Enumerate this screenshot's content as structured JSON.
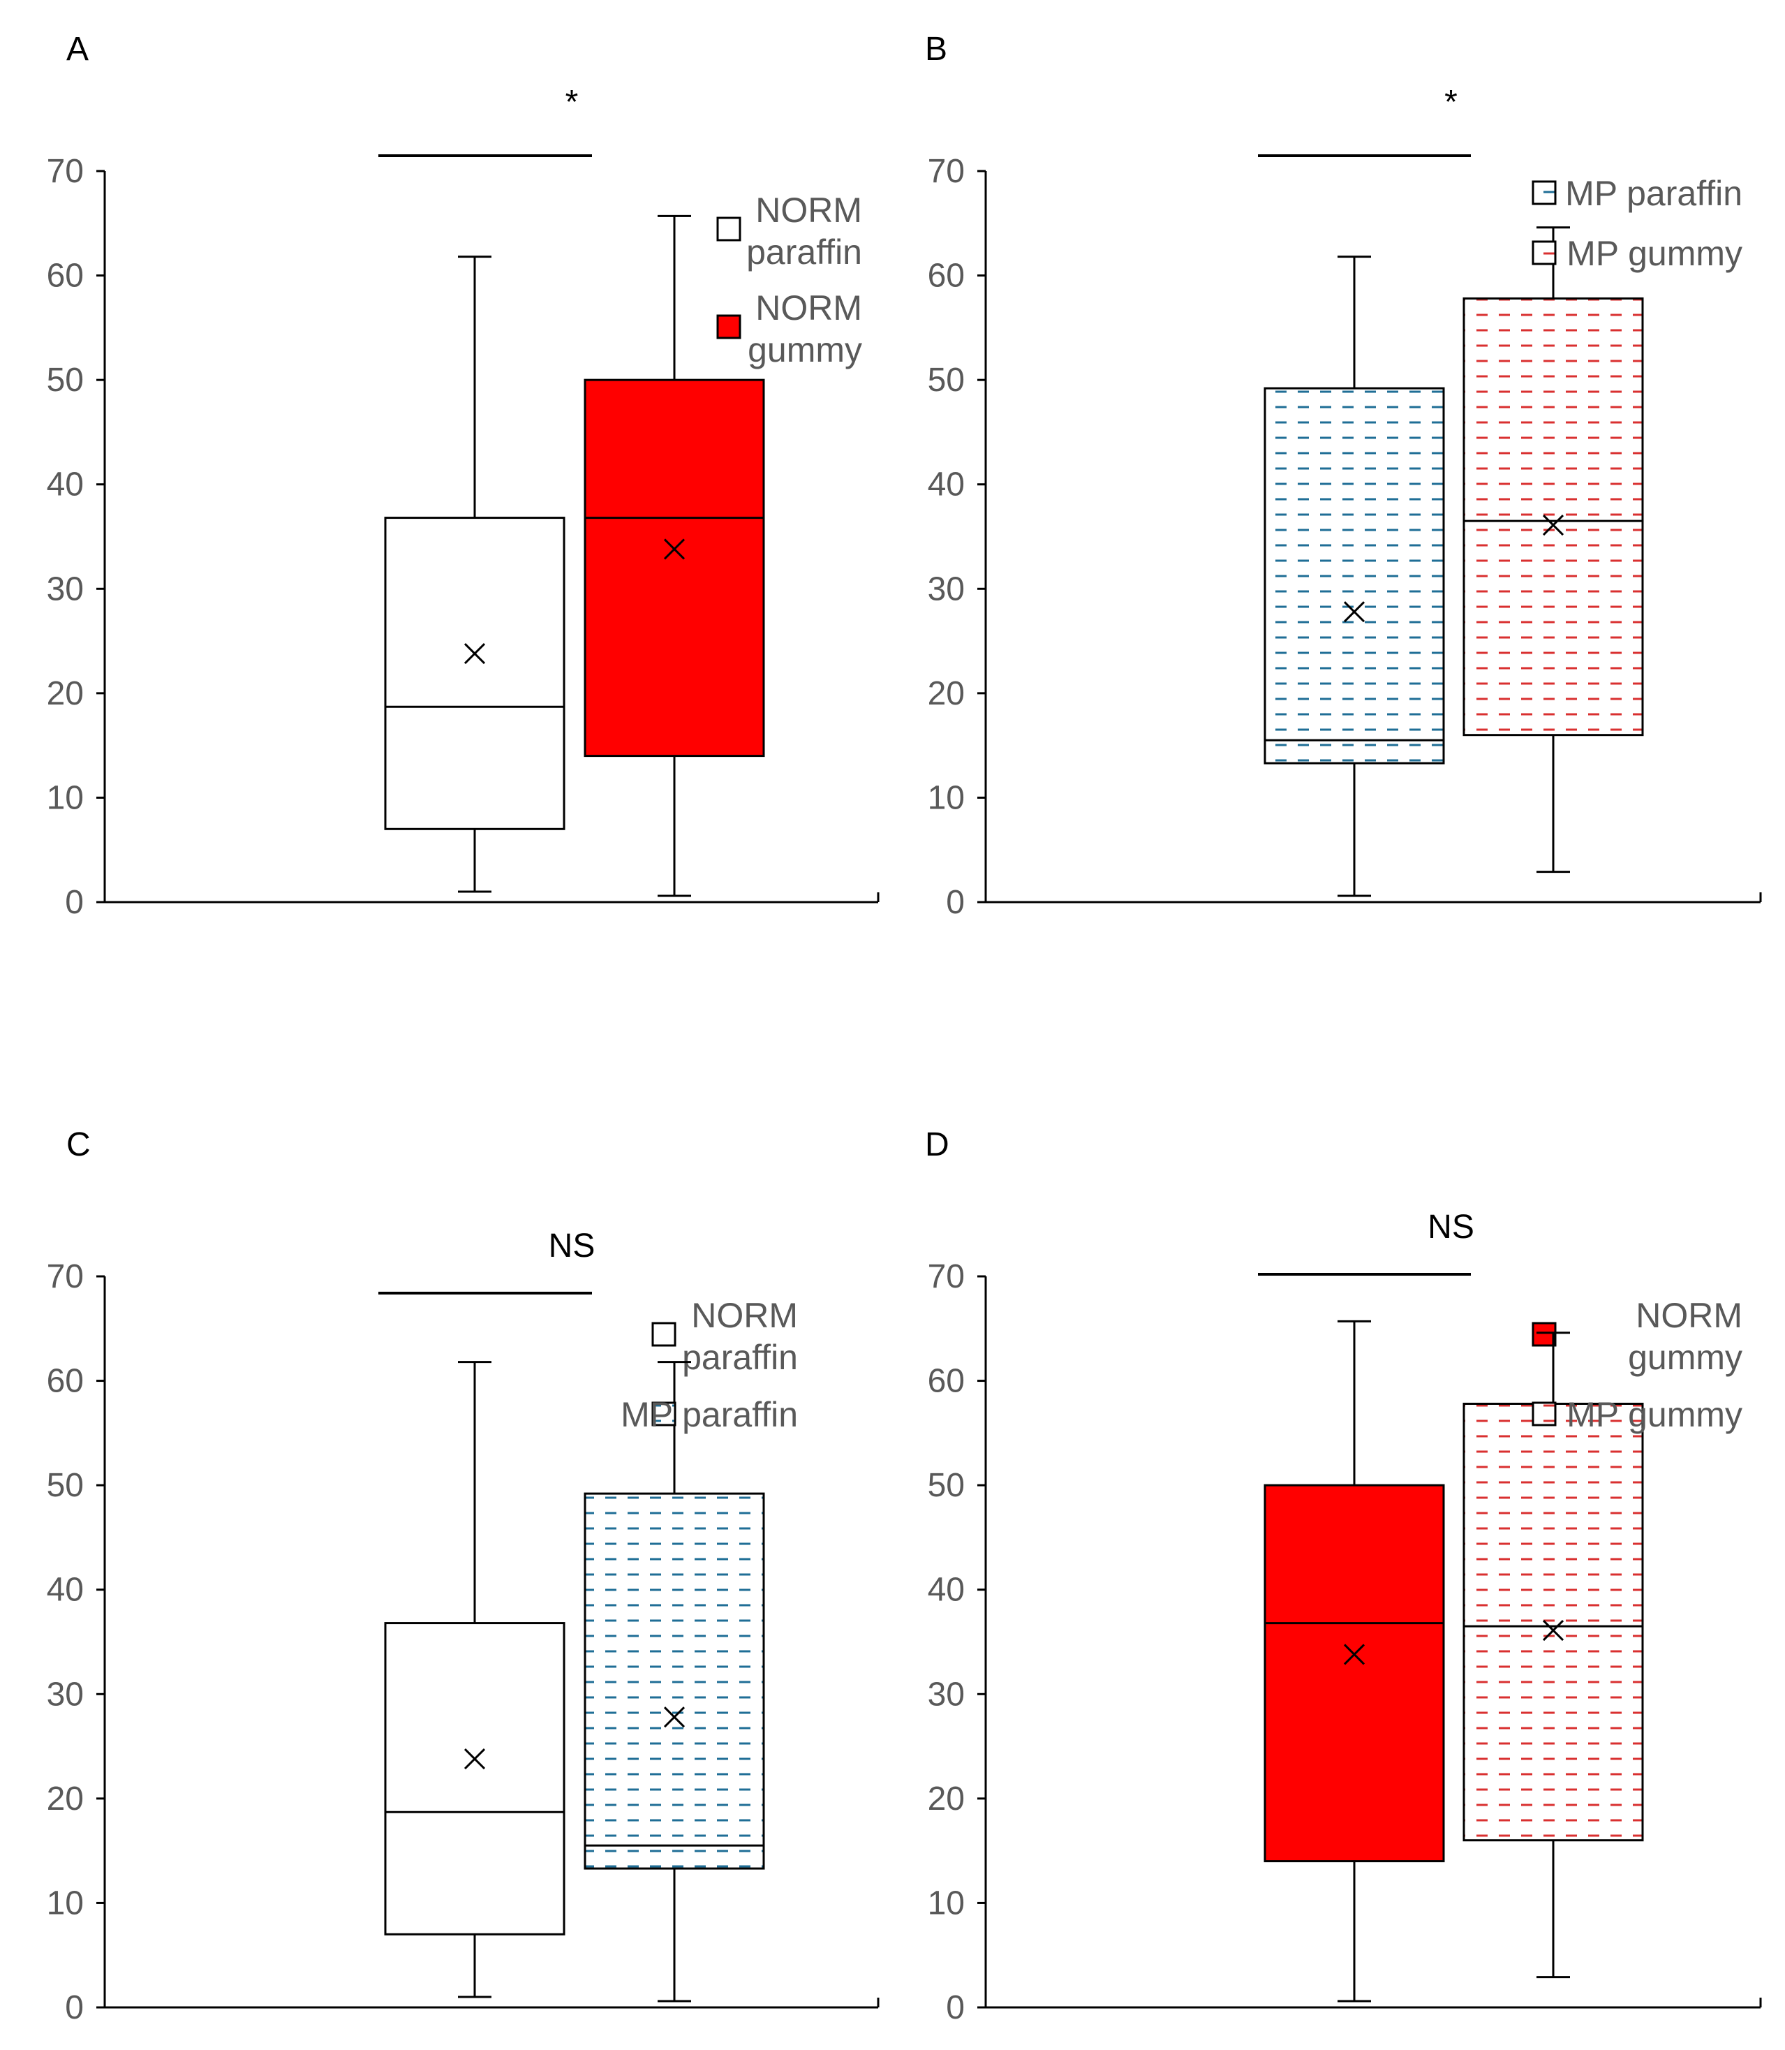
{
  "colors": {
    "red": "#ff0000",
    "white": "#ffffff",
    "blue_dash": "#1f6e96",
    "red_dash": "#d93030",
    "axis": "#000000",
    "tick_text": "#595959"
  },
  "chart_data": [
    {
      "type": "box",
      "panel": "A",
      "significance": "*",
      "ylim": [
        0,
        70
      ],
      "yticks": [
        "0",
        "10",
        "20",
        "30",
        "40",
        "50",
        "60",
        "70"
      ],
      "series": [
        {
          "name": "NORM paraffin",
          "legend_lines": [
            "NORM",
            "paraffin"
          ],
          "fill": "white",
          "min": 1,
          "q1": 7,
          "median": 18.7,
          "q3": 36.8,
          "max": 61.8,
          "mean": 23.8
        },
        {
          "name": "NORM gummy",
          "legend_lines": [
            "NORM",
            "gummy"
          ],
          "fill": "red",
          "min": 0.6,
          "q1": 14,
          "median": 36.8,
          "q3": 50,
          "max": 65.7,
          "mean": 33.8
        }
      ]
    },
    {
      "type": "box",
      "panel": "B",
      "significance": "*",
      "ylim": [
        0,
        70
      ],
      "yticks": [
        "0",
        "10",
        "20",
        "30",
        "40",
        "50",
        "60",
        "70"
      ],
      "series": [
        {
          "name": "MP paraffin",
          "legend_lines": [
            "MP paraffin"
          ],
          "fill": "blue_dash",
          "min": 0.6,
          "q1": 13.3,
          "median": 15.5,
          "q3": 49.2,
          "max": 61.8,
          "mean": 27.8
        },
        {
          "name": "MP gummy",
          "legend_lines": [
            "MP gummy"
          ],
          "fill": "red_dash",
          "min": 2.9,
          "q1": 16,
          "median": 36.5,
          "q3": 57.8,
          "max": 64.6,
          "mean": 36.1
        }
      ]
    },
    {
      "type": "box",
      "panel": "C",
      "significance": "NS",
      "ylim": [
        0,
        70
      ],
      "yticks": [
        "0",
        "10",
        "20",
        "30",
        "40",
        "50",
        "60",
        "70"
      ],
      "series": [
        {
          "name": "NORM paraffin",
          "legend_lines": [
            "NORM",
            "paraffin"
          ],
          "fill": "white",
          "min": 1,
          "q1": 7,
          "median": 18.7,
          "q3": 36.8,
          "max": 61.8,
          "mean": 23.8
        },
        {
          "name": "MP paraffin",
          "legend_lines": [
            "MP paraffin"
          ],
          "fill": "blue_dash",
          "min": 0.6,
          "q1": 13.3,
          "median": 15.5,
          "q3": 49.2,
          "max": 61.8,
          "mean": 27.8
        }
      ]
    },
    {
      "type": "box",
      "panel": "D",
      "significance": "NS",
      "ylim": [
        0,
        70
      ],
      "yticks": [
        "0",
        "10",
        "20",
        "30",
        "40",
        "50",
        "60",
        "70"
      ],
      "series": [
        {
          "name": "NORM gummy",
          "legend_lines": [
            "NORM",
            "gummy"
          ],
          "fill": "red",
          "min": 0.6,
          "q1": 14,
          "median": 36.8,
          "q3": 50,
          "max": 65.7,
          "mean": 33.8
        },
        {
          "name": "MP gummy",
          "legend_lines": [
            "MP gummy"
          ],
          "fill": "red_dash",
          "min": 2.9,
          "q1": 16,
          "median": 36.5,
          "q3": 57.8,
          "max": 64.6,
          "mean": 36.1
        }
      ]
    }
  ]
}
